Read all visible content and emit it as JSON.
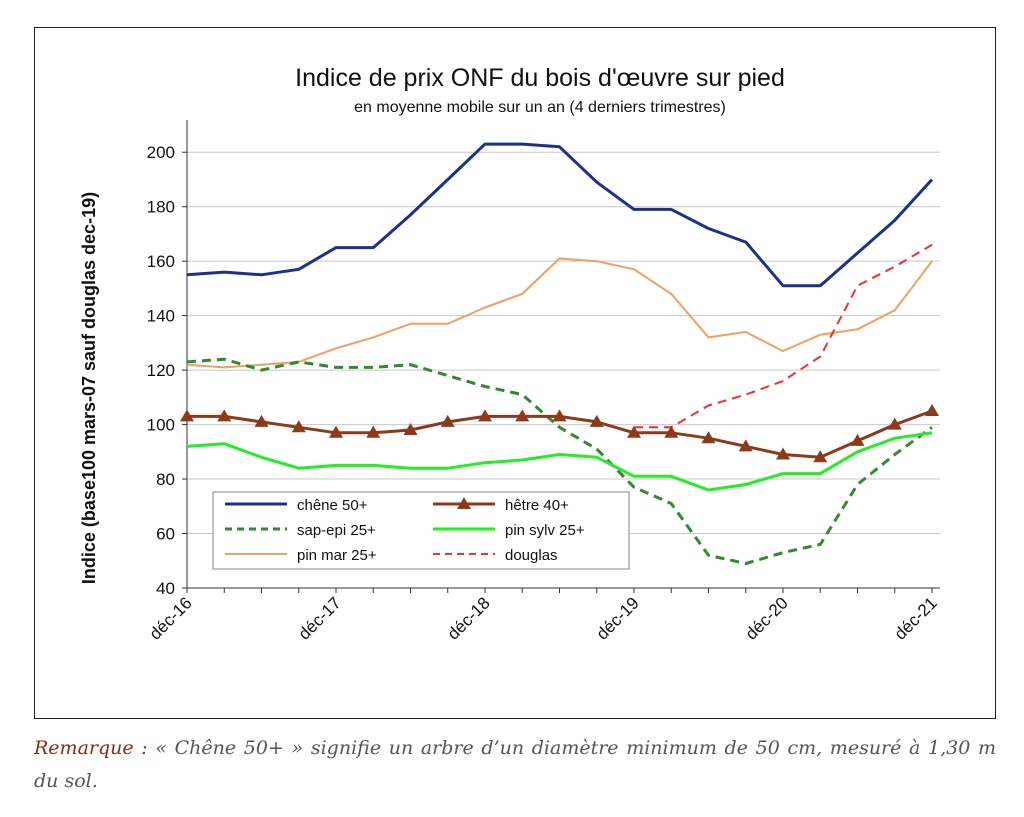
{
  "remark": {
    "label": "Remarque :",
    "text": "« Chêne 50+ » signifie un arbre d’un diamètre minimum de 50 cm, mesuré à 1,30 m du sol."
  },
  "chart_data": {
    "type": "line",
    "title": "Indice de prix ONF du bois d'œuvre sur pied",
    "subtitle": "en moyenne mobile sur un an (4 derniers trimestres)",
    "xlabel": "",
    "ylabel": "Indice (base100 mars-07 sauf douglas dec-19)",
    "ylim": [
      40,
      210
    ],
    "yticks": [
      40,
      60,
      80,
      100,
      120,
      140,
      160,
      180,
      200
    ],
    "grid": true,
    "legend_position": "bottom-left",
    "x_tick_labels": [
      "déc-16",
      "déc-17",
      "déc-18",
      "déc-19",
      "déc-20",
      "déc-21"
    ],
    "x_tick_index": [
      0,
      4,
      8,
      12,
      16,
      20
    ],
    "x_count": 21,
    "series": [
      {
        "name": "chêne 50+",
        "color": "#1f2f8f",
        "style": "solid",
        "width": 3,
        "values": [
          155,
          156,
          155,
          157,
          165,
          165,
          177,
          190,
          203,
          203,
          202,
          189,
          179,
          179,
          172,
          167,
          151,
          151,
          163,
          175,
          190
        ]
      },
      {
        "name": "hêtre 40+",
        "color": "#8b3a1a",
        "style": "solid",
        "width": 3,
        "marker": "triangle",
        "values": [
          103,
          103,
          101,
          99,
          97,
          97,
          98,
          101,
          103,
          103,
          103,
          101,
          97,
          97,
          95,
          92,
          89,
          88,
          94,
          100,
          105
        ]
      },
      {
        "name": "sap-epi 25+",
        "color": "#2e8b2e",
        "style": "dashed",
        "width": 3,
        "values": [
          123,
          124,
          120,
          123,
          121,
          121,
          122,
          118,
          114,
          111,
          99,
          91,
          77,
          71,
          52,
          49,
          53,
          56,
          78,
          89,
          99
        ]
      },
      {
        "name": "pin sylv 25+",
        "color": "#22ee22",
        "style": "solid",
        "width": 3,
        "values": [
          92,
          93,
          88,
          84,
          85,
          85,
          84,
          84,
          86,
          87,
          89,
          88,
          81,
          81,
          76,
          78,
          82,
          82,
          90,
          95,
          97
        ]
      },
      {
        "name": "pin mar 25+",
        "color": "#f0a060",
        "style": "solid",
        "width": 2,
        "values": [
          122,
          121,
          122,
          123,
          128,
          132,
          137,
          137,
          143,
          148,
          161,
          160,
          157,
          148,
          132,
          134,
          127,
          133,
          135,
          142,
          160
        ]
      },
      {
        "name": "douglas",
        "color": "#ff2a2a",
        "style": "dashed",
        "width": 2,
        "start_index": 12,
        "values": [
          99,
          99,
          107,
          111,
          116,
          125,
          151,
          158,
          166
        ]
      }
    ]
  }
}
